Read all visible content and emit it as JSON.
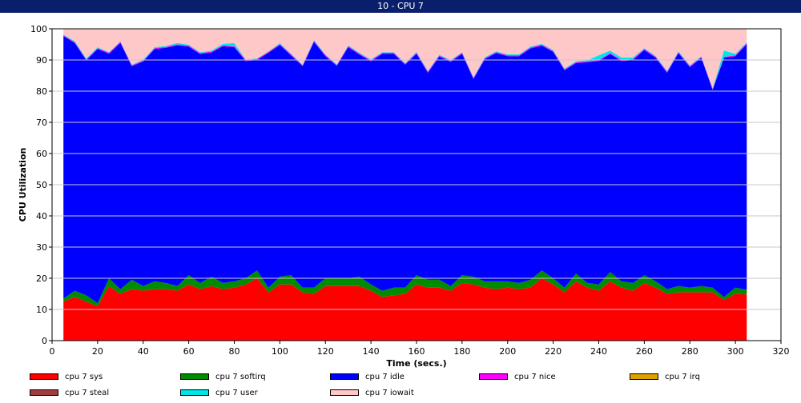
{
  "window": {
    "title": "10 - CPU 7"
  },
  "chart_data": {
    "type": "area",
    "stacked": true,
    "xlabel": "Time (secs.)",
    "ylabel": "CPU Utilization",
    "xlim": [
      0,
      320
    ],
    "ylim": [
      0,
      100
    ],
    "x_ticks": [
      0,
      20,
      40,
      60,
      80,
      100,
      120,
      140,
      160,
      180,
      200,
      220,
      240,
      260,
      280,
      300,
      320
    ],
    "y_ticks": [
      0,
      10,
      20,
      30,
      40,
      50,
      60,
      70,
      80,
      90,
      100
    ],
    "grid": "horizontal",
    "legend_position": "bottom",
    "x": [
      5,
      10,
      15,
      20,
      25,
      30,
      35,
      40,
      45,
      50,
      55,
      60,
      65,
      70,
      75,
      80,
      85,
      90,
      95,
      100,
      105,
      110,
      115,
      120,
      125,
      130,
      135,
      140,
      145,
      150,
      155,
      160,
      165,
      170,
      175,
      180,
      185,
      190,
      195,
      200,
      205,
      210,
      215,
      220,
      225,
      230,
      235,
      240,
      245,
      250,
      255,
      260,
      265,
      270,
      275,
      280,
      285,
      290,
      295,
      300,
      305
    ],
    "series": [
      {
        "name": "cpu 7 sys",
        "color": "#ff0000",
        "values": [
          12.5,
          14,
          12.5,
          11,
          17.5,
          15,
          16.5,
          16,
          16.5,
          16.5,
          16,
          18,
          16.5,
          17.5,
          16.5,
          17,
          18,
          20,
          15.5,
          18,
          18,
          15.5,
          15,
          17.5,
          17.5,
          17.5,
          17.5,
          16,
          14,
          14.5,
          15,
          18,
          17,
          17,
          16,
          18.5,
          18,
          17,
          16.5,
          17,
          16.5,
          17,
          20,
          18,
          15.5,
          19,
          17,
          16,
          19,
          17,
          16,
          18.5,
          17,
          15,
          15.5,
          15.5,
          15.5,
          15.5,
          13,
          15,
          14.8
        ]
      },
      {
        "name": "cpu 7 softirq",
        "color": "#008c00",
        "values": [
          1,
          2,
          2,
          1,
          2.5,
          1.5,
          3,
          1.5,
          2.5,
          2,
          1.5,
          3,
          2,
          3,
          2,
          2,
          2,
          2.5,
          1.5,
          2.5,
          3,
          1.5,
          2,
          2.5,
          2.5,
          2.5,
          3,
          2,
          2,
          2.5,
          2,
          3,
          2.5,
          2.5,
          1.5,
          2.5,
          2.5,
          2,
          2.5,
          2,
          2,
          2.5,
          2.5,
          2,
          1.5,
          2.5,
          1.5,
          2,
          3,
          2,
          2.5,
          2.5,
          2,
          1.5,
          2,
          1.5,
          2,
          1.5,
          1,
          2,
          1.5
        ]
      },
      {
        "name": "cpu 7 idle",
        "color": "#0000ff",
        "values": [
          84.2,
          79.4,
          75.4,
          81.5,
          72,
          79,
          68.5,
          72,
          74.5,
          75.4,
          77.2,
          73.3,
          73.4,
          71.9,
          75.9,
          75.1,
          69.7,
          67.5,
          75.3,
          74.3,
          70.4,
          71,
          78.8,
          71.2,
          68.1,
          74.1,
          71.2,
          71.6,
          76,
          75,
          71.5,
          71,
          66.4,
          71.6,
          71.9,
          71,
          63.4,
          71.3,
          73.2,
          72.2,
          72.7,
          74.2,
          72.1,
          72.6,
          69.7,
          67.5,
          70.8,
          71.7,
          69.9,
          70.7,
          71.5,
          72.2,
          71.7,
          69.4,
          74.7,
          70.7,
          73.2,
          63.4,
          76.7,
          74.2,
          78.8
        ]
      },
      {
        "name": "cpu 7 nice",
        "color": "#ff00ff",
        "values": [
          0.2,
          0.3,
          0.3,
          0.3,
          0.3,
          0.3,
          0.3,
          0.3,
          0.3,
          0.3,
          0.3,
          0.3,
          0.3,
          0.3,
          0.3,
          0.3,
          0.3,
          0.3,
          0.3,
          0.3,
          0.3,
          0.3,
          0.3,
          0.3,
          0.3,
          0.3,
          0.3,
          0.3,
          0.3,
          0.3,
          0.3,
          0.3,
          0.3,
          0.3,
          0.3,
          0.3,
          0.3,
          0.3,
          0.3,
          0.3,
          0.3,
          0.3,
          0.3,
          0.3,
          0.3,
          0.3,
          0.3,
          0.3,
          0.3,
          0.3,
          0.3,
          0.3,
          0.3,
          0.3,
          0.3,
          0.3,
          0.3,
          0.3,
          0.3,
          0.3,
          0.3
        ]
      },
      {
        "name": "cpu 7 irq",
        "color": "#e0a000",
        "values": [
          0,
          0,
          0,
          0,
          0,
          0,
          0,
          0,
          0,
          0,
          0,
          0,
          0,
          0,
          0,
          0,
          0,
          0,
          0,
          0,
          0,
          0,
          0,
          0,
          0,
          0,
          0,
          0,
          0,
          0,
          0,
          0,
          0,
          0,
          0,
          0,
          0,
          0,
          0,
          0,
          0,
          0,
          0,
          0,
          0,
          0,
          0,
          0,
          0,
          0,
          0,
          0,
          0,
          0,
          0,
          0,
          0,
          0,
          0,
          0,
          0
        ]
      },
      {
        "name": "cpu 7 steal",
        "color": "#a03c3c",
        "values": [
          0,
          0,
          0,
          0,
          0,
          0,
          0,
          0,
          0,
          0,
          0,
          0,
          0,
          0,
          0,
          0,
          0,
          0,
          0,
          0,
          0,
          0,
          0,
          0,
          0,
          0,
          0,
          0,
          0,
          0,
          0,
          0,
          0,
          0,
          0,
          0,
          0,
          0,
          0,
          0,
          0,
          0,
          0,
          0,
          0,
          0,
          0,
          0,
          0,
          0,
          0,
          0,
          0,
          0,
          0,
          0,
          0,
          0,
          0,
          0,
          0
        ]
      },
      {
        "name": "cpu 7 user",
        "color": "#00e6e6",
        "values": [
          0.3,
          0.3,
          0.3,
          0.3,
          0.2,
          0.2,
          0.2,
          0.3,
          0.3,
          0.3,
          0.5,
          0.3,
          0.3,
          0.3,
          0.5,
          1,
          0.2,
          0.2,
          0.2,
          0.3,
          0.3,
          0.2,
          0.3,
          0.3,
          0.2,
          0.3,
          0.3,
          0.3,
          0.2,
          0.2,
          0.2,
          0.3,
          0.3,
          0.3,
          0.3,
          0.2,
          0.3,
          0.3,
          0.3,
          0.3,
          0.3,
          0.3,
          0.3,
          0.3,
          0.3,
          0.3,
          0.3,
          1.5,
          0.8,
          0.8,
          0.5,
          0.3,
          0.3,
          0.3,
          0.3,
          0.3,
          0.2,
          0.3,
          2,
          0.5,
          0.3
        ]
      },
      {
        "name": "cpu 7 iowait",
        "color": "#ffc8c8",
        "values": [
          1.8,
          4,
          9.5,
          5.9,
          8,
          4,
          11.5,
          9.9,
          5.9,
          5.5,
          4.5,
          5.1,
          7.5,
          7,
          4.8,
          4.6,
          9.8,
          9.5,
          7.2,
          4.6,
          8,
          11.5,
          3.6,
          8.2,
          11.4,
          5.3,
          7.7,
          9.8,
          7.5,
          7.5,
          11,
          7.4,
          13.5,
          8.3,
          9.9,
          8,
          15.5,
          9.1,
          7.2,
          8.2,
          8.2,
          5.7,
          4.8,
          6.8,
          13,
          10.4,
          10.1,
          8.5,
          7,
          9.2,
          9.2,
          6.2,
          8.7,
          13.5,
          7.2,
          12,
          8.8,
          19,
          7,
          8,
          4.6
        ]
      }
    ]
  }
}
